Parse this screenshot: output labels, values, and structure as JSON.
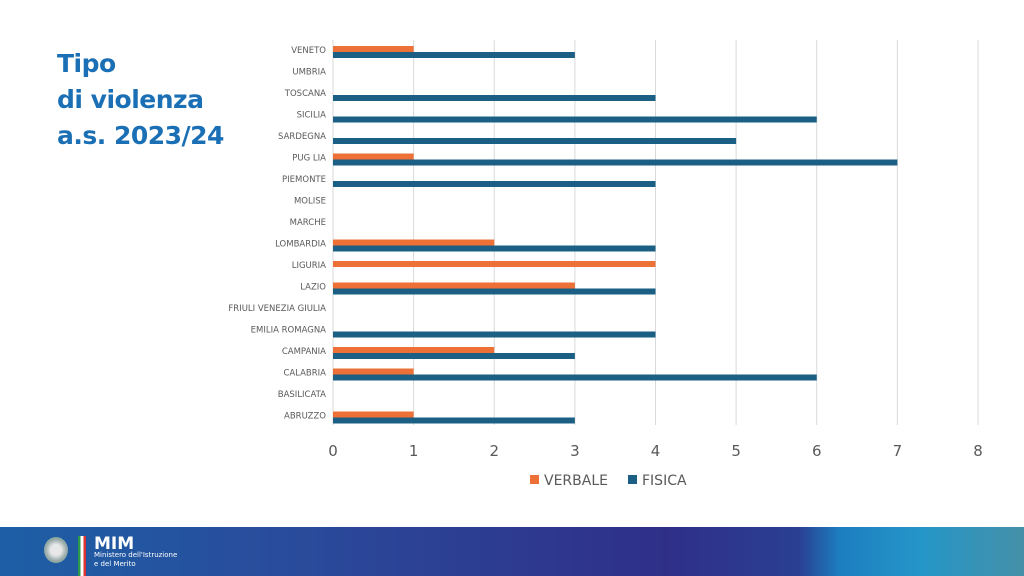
{
  "title_lines": [
    "Tipo",
    "di violenza",
    "a.s. 2023/24"
  ],
  "chart_data": {
    "type": "bar",
    "orientation": "horizontal",
    "categories": [
      "VENETO",
      "UMBRIA",
      "TOSCANA",
      "SICILIA",
      "SARDEGNA",
      "PUG LIA",
      "PIEMONTE",
      "MOLISE",
      "MARCHE",
      "LOMBARDIA",
      "LIGURIA",
      "LAZIO",
      "FRIULI VENEZIA GIULIA",
      "EMILIA ROMAGNA",
      "CAMPANIA",
      "CALABRIA",
      "BASILICATA",
      "ABRUZZO"
    ],
    "series": [
      {
        "name": "VERBALE",
        "color": "#ed7136",
        "values": [
          1,
          0,
          0,
          0,
          0,
          1,
          0,
          0,
          0,
          2,
          4,
          3,
          0,
          0,
          2,
          1,
          0,
          1
        ]
      },
      {
        "name": "FISICA",
        "color": "#1b5f85",
        "values": [
          3,
          0,
          4,
          6,
          5,
          7,
          4,
          0,
          0,
          4,
          0,
          4,
          0,
          4,
          3,
          6,
          0,
          3
        ]
      }
    ],
    "xlim": [
      0,
      8
    ],
    "xticks": [
      "0",
      "1",
      "2",
      "3",
      "4",
      "5",
      "6",
      "7",
      "8"
    ],
    "grid": true,
    "legend": "bottom"
  },
  "footer": {
    "logo": "MIM",
    "ministry_line1": "Ministero dell'Istruzione",
    "ministry_line2": "e del Merito"
  }
}
